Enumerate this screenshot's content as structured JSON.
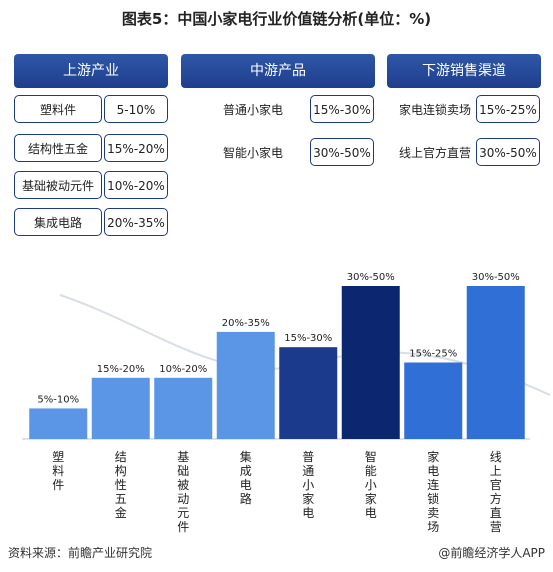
{
  "title": "图表5：中国小家电行业价值链分析(单位：%)",
  "columns": [
    {
      "header": "上游产业",
      "items": [
        {
          "name": "塑料件",
          "value": "5-10%"
        },
        {
          "name": "结构性五金",
          "value": "15%-20%"
        },
        {
          "name": "基础被动元件",
          "value": "10%-20%"
        },
        {
          "name": "集成电路",
          "value": "20%-35%"
        }
      ]
    },
    {
      "header": "中游产品",
      "items": [
        {
          "name": "普通小家电",
          "value": "15%-30%"
        },
        {
          "name": "智能小家电",
          "value": "30%-50%"
        }
      ]
    },
    {
      "header": "下游销售渠道",
      "items": [
        {
          "name": "家电连锁卖场",
          "value": "15%-25%"
        },
        {
          "name": "线上官方直营",
          "value": "30%-50%"
        }
      ]
    }
  ],
  "chart_data": {
    "type": "bar",
    "categories": [
      "塑料件",
      "结构性五金",
      "基础被动元件",
      "集成电路",
      "普通小家电",
      "智能小家电",
      "家电连锁卖场",
      "线上官方直营"
    ],
    "value_labels": [
      "5%-10%",
      "15%-20%",
      "10%-20%",
      "20%-35%",
      "15%-30%",
      "30%-50%",
      "15%-25%",
      "30%-50%"
    ],
    "values": [
      10,
      20,
      20,
      35,
      30,
      50,
      25,
      50
    ],
    "ylim": [
      0,
      50
    ],
    "colors": [
      "#5b96e6",
      "#5b96e6",
      "#5b96e6",
      "#5b96e6",
      "#1b3a8c",
      "#0d2670",
      "#2f6fd6",
      "#2f6fd6"
    ]
  },
  "footer": {
    "source": "资料来源：前瞻产业研究院",
    "brand": "@前瞻经济学人APP"
  },
  "colors": {
    "header_bg": "#1e3f8c",
    "pill_border": "#1f3a85"
  }
}
